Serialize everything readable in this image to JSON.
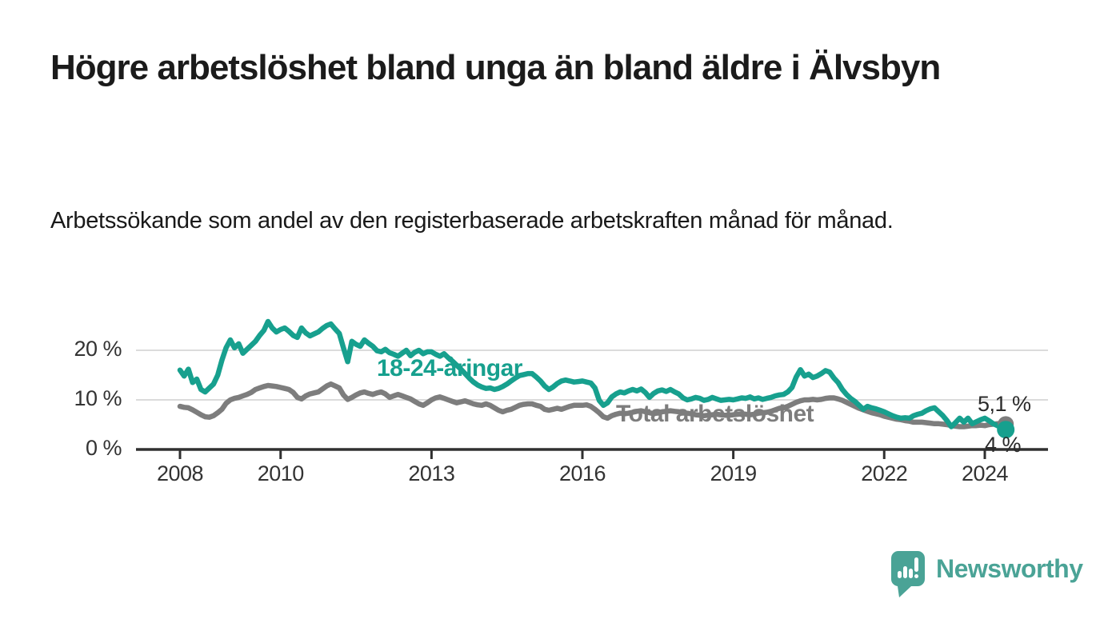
{
  "header": {
    "title": "Högre arbetslöshet bland unga än bland äldre i Älvsbyn",
    "subtitle": "Arbetssökande som andel av den registerbaserade arbetskraften månad för månad."
  },
  "footer": {
    "brand": "Newsworthy"
  },
  "colors": {
    "accent_teal": "#17A08E",
    "series_gray": "#7D7D7D",
    "brand_teal": "#4AA396",
    "grid": "#DBDBDB",
    "axis": "#303030",
    "text_dark": "#1b1b1b"
  },
  "chart_data": {
    "type": "line",
    "title": "Högre arbetslöshet bland unga än bland äldre i Älvsbyn",
    "subtitle": "Arbetssökande som andel av den registerbaserade arbetskraften månad för månad.",
    "unit": "%",
    "grid": "horizontal",
    "legend_position": "inline-labels",
    "x_start_year": 2008,
    "points_per_year": 12,
    "x_ticks": [
      "2008",
      "2010",
      "2013",
      "2016",
      "2019",
      "2022",
      "2024"
    ],
    "y_ticks": [
      {
        "value": 0,
        "label": "0 %"
      },
      {
        "value": 10,
        "label": "10 %"
      },
      {
        "value": 20,
        "label": "20 %"
      }
    ],
    "ylim": [
      0,
      26
    ],
    "series": [
      {
        "name": "18-24-åringar",
        "color": "#17A08E",
        "end_label": "4 %",
        "end_value": 4.0,
        "dot_radius": 11,
        "values": [
          16.0,
          14.8,
          16.2,
          13.5,
          14.2,
          12.1,
          11.6,
          12.4,
          13.2,
          15.0,
          18.0,
          20.5,
          22.1,
          20.5,
          21.3,
          19.4,
          20.2,
          21.0,
          21.8,
          23.0,
          24.0,
          25.8,
          24.5,
          23.7,
          24.2,
          24.5,
          23.8,
          23.0,
          22.6,
          24.5,
          23.5,
          22.9,
          23.3,
          23.7,
          24.4,
          25.0,
          25.3,
          24.3,
          23.4,
          20.5,
          17.7,
          21.8,
          21.2,
          20.8,
          22.1,
          21.4,
          20.8,
          19.9,
          19.7,
          20.2,
          19.5,
          19.2,
          18.8,
          19.4,
          20.0,
          18.9,
          19.6,
          20.0,
          19.3,
          19.7,
          19.7,
          19.2,
          18.8,
          19.3,
          18.5,
          17.8,
          17.0,
          16.2,
          15.3,
          14.4,
          13.6,
          13.0,
          12.6,
          12.3,
          12.4,
          12.1,
          12.3,
          12.7,
          13.2,
          13.8,
          14.4,
          14.9,
          15.1,
          15.3,
          15.3,
          14.6,
          13.8,
          12.8,
          12.1,
          12.6,
          13.3,
          13.8,
          14.0,
          13.8,
          13.6,
          13.7,
          13.8,
          13.6,
          13.4,
          12.4,
          9.9,
          8.9,
          9.4,
          10.6,
          11.2,
          11.6,
          11.4,
          11.8,
          12.1,
          11.8,
          12.2,
          11.5,
          10.5,
          11.3,
          11.8,
          12.0,
          11.7,
          12.1,
          11.6,
          11.2,
          10.4,
          10.0,
          10.2,
          10.5,
          10.3,
          9.9,
          10.1,
          10.5,
          10.2,
          9.9,
          10.0,
          10.1,
          10.0,
          10.2,
          10.4,
          10.3,
          10.6,
          10.2,
          10.4,
          10.1,
          10.3,
          10.5,
          10.8,
          11.0,
          11.1,
          11.6,
          12.5,
          14.6,
          16.1,
          14.8,
          15.2,
          14.5,
          14.8,
          15.3,
          15.9,
          15.6,
          14.4,
          13.5,
          12.1,
          11.1,
          10.3,
          9.7,
          8.9,
          8.1,
          8.7,
          8.4,
          8.2,
          7.9,
          7.6,
          7.2,
          6.8,
          6.5,
          6.3,
          6.4,
          6.3,
          6.8,
          7.1,
          7.3,
          7.8,
          8.2,
          8.4,
          7.6,
          6.8,
          5.8,
          4.6,
          5.4,
          6.3,
          5.5,
          6.3,
          5.2,
          5.6,
          6.0,
          6.3,
          5.8,
          5.2,
          4.8,
          4.3,
          4.0
        ]
      },
      {
        "name": "Total arbetslöshet",
        "color": "#7D7D7D",
        "end_label": "5,1 %",
        "end_value": 5.1,
        "dot_radius": 10,
        "values": [
          8.7,
          8.5,
          8.4,
          8.0,
          7.5,
          7.0,
          6.6,
          6.5,
          6.8,
          7.4,
          8.1,
          9.3,
          10.0,
          10.3,
          10.5,
          10.8,
          11.1,
          11.5,
          12.1,
          12.4,
          12.7,
          12.9,
          12.8,
          12.7,
          12.5,
          12.3,
          12.1,
          11.5,
          10.5,
          10.2,
          10.8,
          11.2,
          11.4,
          11.6,
          12.2,
          12.8,
          13.2,
          12.8,
          12.4,
          11.0,
          10.1,
          10.5,
          11.0,
          11.4,
          11.6,
          11.3,
          11.1,
          11.4,
          11.6,
          11.2,
          10.5,
          10.8,
          11.1,
          10.8,
          10.5,
          10.2,
          9.7,
          9.2,
          8.9,
          9.4,
          10.0,
          10.4,
          10.6,
          10.3,
          10.0,
          9.7,
          9.4,
          9.6,
          9.8,
          9.5,
          9.2,
          9.0,
          8.9,
          9.2,
          8.9,
          8.4,
          7.9,
          7.6,
          7.9,
          8.1,
          8.5,
          8.9,
          9.1,
          9.2,
          9.2,
          8.9,
          8.7,
          8.1,
          7.9,
          8.1,
          8.3,
          8.1,
          8.4,
          8.7,
          8.9,
          8.9,
          8.9,
          9.0,
          8.7,
          8.1,
          7.4,
          6.6,
          6.3,
          6.8,
          7.1,
          7.3,
          7.2,
          7.3,
          7.5,
          7.7,
          7.8,
          7.6,
          7.4,
          7.2,
          7.4,
          7.6,
          7.7,
          7.8,
          7.7,
          7.6,
          7.4,
          7.3,
          7.2,
          7.0,
          6.9,
          6.8,
          6.9,
          7.0,
          7.1,
          7.0,
          6.9,
          6.9,
          7.0,
          7.1,
          7.2,
          7.1,
          7.0,
          7.1,
          7.3,
          7.4,
          7.5,
          7.7,
          8.0,
          8.3,
          8.4,
          8.7,
          9.1,
          9.5,
          9.8,
          10.0,
          10.0,
          10.1,
          10.0,
          10.1,
          10.3,
          10.4,
          10.4,
          10.2,
          9.9,
          9.5,
          9.1,
          8.7,
          8.3,
          8.0,
          7.7,
          7.4,
          7.2,
          7.0,
          6.7,
          6.5,
          6.3,
          6.1,
          6.0,
          5.8,
          5.7,
          5.5,
          5.5,
          5.5,
          5.4,
          5.3,
          5.2,
          5.2,
          5.1,
          5.0,
          4.8,
          4.7,
          4.6,
          4.6,
          4.7,
          4.8,
          4.8,
          4.9,
          4.8,
          5.0,
          5.1,
          5.2,
          5.2,
          5.1
        ]
      }
    ]
  }
}
